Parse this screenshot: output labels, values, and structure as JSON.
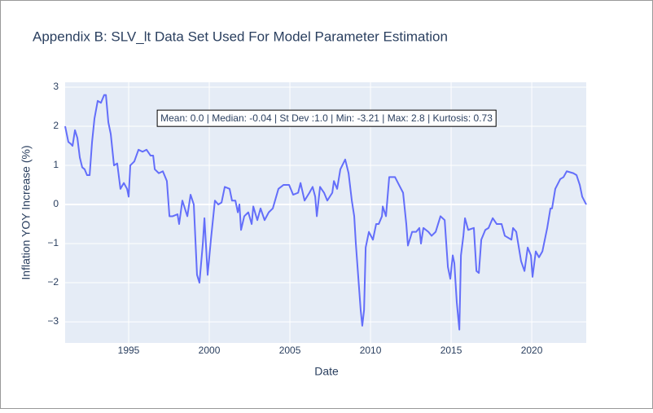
{
  "chart_data": {
    "type": "line",
    "title": "Appendix B: SLV_lt Data Set Used For Model Parameter Estimation",
    "x_label": "Date",
    "y_label": "Inflation YOY Increase (%)",
    "annotation": "Mean: 0.0 | Median: -0.04 | St Dev :1.0 | Min: -3.21 | Max: 2.8 | Kurtosis: 0.73",
    "xlim": [
      1991.06,
      2023.38
    ],
    "ylim": [
      -3.54,
      3.125
    ],
    "xticks": [
      1995,
      2000,
      2005,
      2010,
      2015,
      2020
    ],
    "yticks": [
      {
        "value": -3,
        "label": "−3"
      },
      {
        "value": -2,
        "label": "−2"
      },
      {
        "value": -1,
        "label": "−1"
      },
      0,
      1,
      2,
      3
    ],
    "grid": true,
    "x": [
      1991.06,
      1991.26,
      1991.41,
      1991.52,
      1991.67,
      1991.82,
      1991.97,
      1992.12,
      1992.27,
      1992.42,
      1992.58,
      1992.73,
      1992.88,
      1993.08,
      1993.28,
      1993.48,
      1993.59,
      1993.74,
      1993.89,
      1994.09,
      1994.29,
      1994.49,
      1994.7,
      1994.9,
      1995.0,
      1995.1,
      1995.35,
      1995.61,
      1995.86,
      1996.11,
      1996.36,
      1996.52,
      1996.62,
      1996.87,
      1997.12,
      1997.37,
      1997.53,
      1997.73,
      1998.03,
      1998.13,
      1998.33,
      1998.64,
      1998.84,
      1999.04,
      1999.24,
      1999.39,
      1999.6,
      1999.7,
      1999.9,
      2000.1,
      2000.35,
      2000.56,
      2000.76,
      2000.96,
      2001.26,
      2001.41,
      2001.62,
      2001.77,
      2001.87,
      2001.97,
      2002.17,
      2002.42,
      2002.63,
      2002.73,
      2002.98,
      2003.18,
      2003.43,
      2003.69,
      2003.94,
      2004.29,
      2004.6,
      2004.95,
      2005.2,
      2005.51,
      2005.66,
      2005.91,
      2006.21,
      2006.41,
      2006.57,
      2006.67,
      2006.87,
      2007.12,
      2007.32,
      2007.63,
      2007.73,
      2007.93,
      2008.13,
      2008.43,
      2008.64,
      2008.84,
      2008.99,
      2009.09,
      2009.39,
      2009.49,
      2009.6,
      2009.7,
      2009.9,
      2010.15,
      2010.35,
      2010.51,
      2010.71,
      2010.76,
      2010.96,
      2011.16,
      2011.52,
      2011.77,
      2012.02,
      2012.22,
      2012.32,
      2012.58,
      2012.83,
      2013.03,
      2013.13,
      2013.28,
      2013.59,
      2013.79,
      2014.04,
      2014.34,
      2014.6,
      2014.8,
      2014.95,
      2015.1,
      2015.2,
      2015.35,
      2015.51,
      2015.61,
      2015.76,
      2015.86,
      2016.06,
      2016.41,
      2016.57,
      2016.72,
      2016.87,
      2017.12,
      2017.32,
      2017.58,
      2017.83,
      2018.13,
      2018.33,
      2018.74,
      2018.84,
      2019.04,
      2019.34,
      2019.55,
      2019.75,
      2019.95,
      2020.05,
      2020.25,
      2020.45,
      2020.66,
      2020.96,
      2021.16,
      2021.26,
      2021.46,
      2021.77,
      2021.97,
      2022.17,
      2022.58,
      2022.78,
      2022.98,
      2023.13,
      2023.38
    ],
    "series": [
      {
        "color": "#636efa",
        "values": [
          2.0,
          1.6,
          1.55,
          1.5,
          1.9,
          1.7,
          1.2,
          0.95,
          0.9,
          0.75,
          0.75,
          1.6,
          2.2,
          2.65,
          2.6,
          2.8,
          2.8,
          2.1,
          1.8,
          1.0,
          1.05,
          0.4,
          0.55,
          0.4,
          0.2,
          1.0,
          1.1,
          1.4,
          1.35,
          1.4,
          1.25,
          1.25,
          0.9,
          0.8,
          0.85,
          0.6,
          -0.3,
          -0.3,
          -0.25,
          -0.5,
          0.1,
          -0.3,
          0.25,
          0.0,
          -1.8,
          -2.0,
          -1.0,
          -0.35,
          -1.8,
          -0.9,
          0.1,
          0.0,
          0.05,
          0.45,
          0.4,
          0.1,
          0.1,
          -0.2,
          0.0,
          -0.65,
          -0.3,
          -0.2,
          -0.5,
          -0.05,
          -0.4,
          -0.1,
          -0.4,
          -0.2,
          -0.1,
          0.4,
          0.5,
          0.5,
          0.25,
          0.3,
          0.55,
          0.1,
          0.3,
          0.45,
          0.2,
          -0.3,
          0.45,
          0.3,
          0.1,
          0.3,
          0.6,
          0.4,
          0.9,
          1.15,
          0.8,
          0.1,
          -0.3,
          -1.0,
          -2.7,
          -3.1,
          -2.7,
          -1.1,
          -0.7,
          -0.9,
          -0.5,
          -0.5,
          -0.3,
          -0.05,
          -0.3,
          0.7,
          0.7,
          0.5,
          0.3,
          -0.5,
          -1.05,
          -0.7,
          -0.7,
          -0.6,
          -1.0,
          -0.6,
          -0.7,
          -0.8,
          -0.7,
          -0.3,
          -0.4,
          -1.6,
          -1.9,
          -1.3,
          -1.5,
          -2.5,
          -3.2,
          -1.3,
          -0.8,
          -0.35,
          -0.65,
          -0.6,
          -1.7,
          -1.75,
          -0.9,
          -0.65,
          -0.6,
          -0.35,
          -0.5,
          -0.5,
          -0.8,
          -0.9,
          -0.6,
          -0.7,
          -1.45,
          -1.7,
          -1.1,
          -1.3,
          -1.85,
          -1.2,
          -1.35,
          -1.2,
          -0.6,
          -0.1,
          -0.1,
          0.4,
          0.65,
          0.7,
          0.85,
          0.8,
          0.75,
          0.5,
          0.2,
          0.0
        ]
      }
    ]
  }
}
